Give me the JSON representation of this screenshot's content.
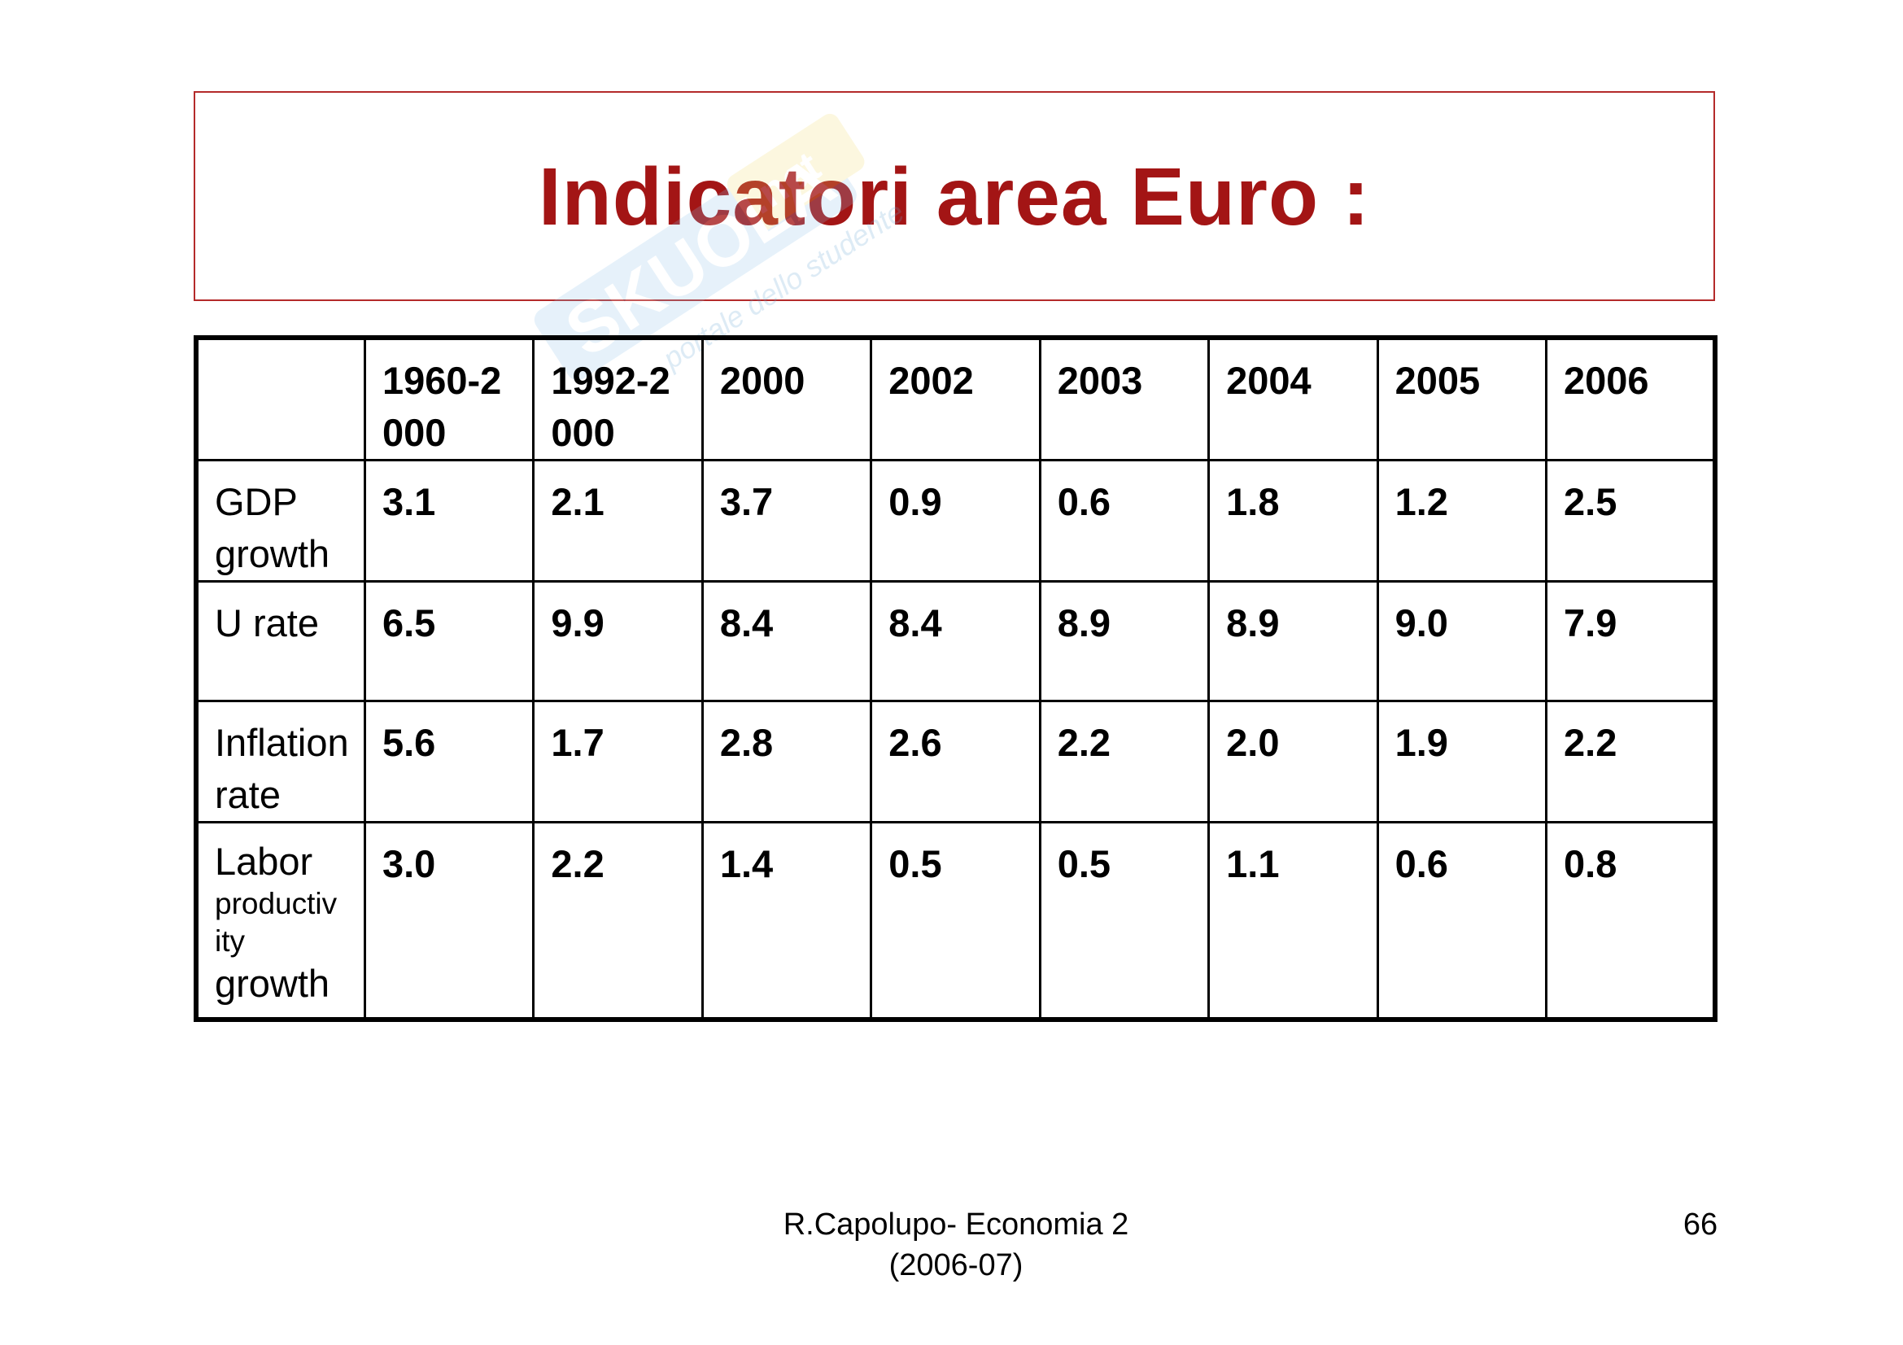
{
  "slide": {
    "title": "Indicatori area Euro :",
    "watermark": {
      "brand": "SKUOLA.net",
      "tagline": "portale dello studente"
    },
    "footer": {
      "line1": "R.Capolupo- Economia 2",
      "line2": "(2006-07)"
    },
    "page_number": "66"
  },
  "table": {
    "headers": [
      "",
      "1960-2\n000",
      "1992-2\n000",
      "2000",
      "2002",
      "2003",
      "2004",
      "2005",
      "2006"
    ],
    "rows": [
      {
        "label": "GDP growth",
        "values": [
          "3.1",
          "2.1",
          "3.7",
          "0.9",
          "0.6",
          "1.8",
          "1.2",
          "2.5"
        ]
      },
      {
        "label": "U rate",
        "values": [
          "6.5",
          "9.9",
          "8.4",
          "8.4",
          "8.9",
          "8.9",
          "9.0",
          "7.9"
        ]
      },
      {
        "label": "Inflation rate",
        "values": [
          "5.6",
          "1.7",
          "2.8",
          "2.6",
          "2.2",
          "2.0",
          "1.9",
          "2.2"
        ]
      },
      {
        "label_parts": [
          "Labor",
          "productiv",
          "ity",
          "growth"
        ],
        "values": [
          "3.0",
          "2.2",
          "1.4",
          "0.5",
          "0.5",
          "1.1",
          "0.6",
          "0.8"
        ]
      }
    ]
  }
}
